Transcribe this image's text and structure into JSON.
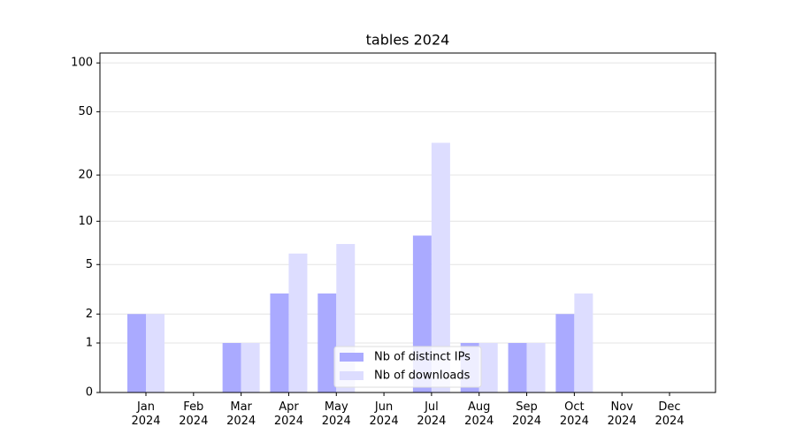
{
  "chart_data": {
    "type": "bar",
    "title": "tables 2024",
    "categories": [
      "Jan 2024",
      "Feb 2024",
      "Mar 2024",
      "Apr 2024",
      "May 2024",
      "Jun 2024",
      "Jul 2024",
      "Aug 2024",
      "Sep 2024",
      "Oct 2024",
      "Nov 2024",
      "Dec 2024"
    ],
    "series": [
      {
        "name": "Nb of distinct IPs",
        "color": "#aaaaff",
        "values": [
          2,
          0,
          1,
          3,
          3,
          0,
          8,
          1,
          1,
          2,
          0,
          0
        ]
      },
      {
        "name": "Nb of downloads",
        "color": "#ddddff",
        "values": [
          2,
          0,
          1,
          6,
          7,
          0,
          32,
          1,
          1,
          3,
          0,
          0
        ]
      }
    ],
    "yscale": "log1p",
    "ylim": [
      0,
      115
    ],
    "yticks": [
      0,
      1,
      2,
      5,
      10,
      20,
      50,
      100
    ],
    "grid": true,
    "legend": "lower center"
  }
}
